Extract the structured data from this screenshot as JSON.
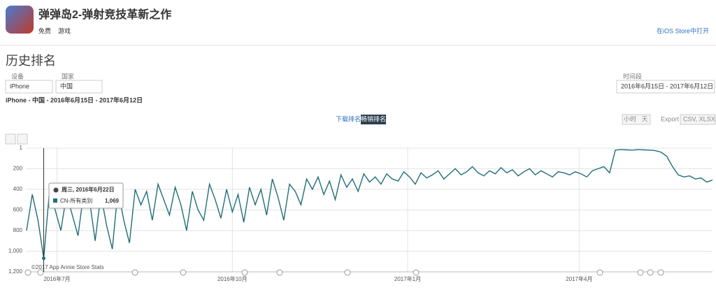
{
  "header": {
    "app_title": "弹弹岛2-弹射竞技革新之作",
    "price": "免费",
    "category": "游戏",
    "store_link": "在iOS Store中打开"
  },
  "section_title": "历史排名",
  "filters": {
    "device_label": "设备",
    "device": "iPhone",
    "country_label": "国家",
    "country": "中国",
    "date_label": "时间段",
    "date_range": "2016年6月15日 - 2017年6月12日"
  },
  "summary": "iPhone - 中国 - 2016年6月15日 - 2017年6月12日",
  "tabs": [
    "下载排名",
    "畅销排名"
  ],
  "controls": {
    "hour": "小时",
    "day": "天",
    "export": "Export",
    "formats": "CSV, XLSX"
  },
  "chart_data": {
    "type": "line",
    "reversed": true,
    "grid": true,
    "credit": "©2017 App Annie Store Stats",
    "series": [
      {
        "name": "CN-所有类别",
        "color": "#1f6f78",
        "values": [
          800,
          450,
          700,
          1069,
          420,
          600,
          800,
          450,
          650,
          850,
          430,
          500,
          900,
          450,
          750,
          980,
          400,
          700,
          920,
          400,
          550,
          420,
          700,
          350,
          500,
          650,
          380,
          550,
          800,
          420,
          600,
          700,
          350,
          500,
          680,
          400,
          620,
          450,
          720,
          380,
          550,
          400,
          650,
          300,
          480,
          700,
          350,
          420,
          550,
          300,
          400,
          280,
          450,
          320,
          500,
          260,
          380,
          300,
          420,
          250,
          330,
          280,
          350,
          250,
          300,
          320,
          230,
          280,
          350,
          240,
          290,
          260,
          220,
          300,
          250,
          200,
          260,
          230,
          180,
          240,
          270,
          220,
          250,
          190,
          240,
          210,
          270,
          230,
          200,
          260,
          220,
          250,
          280,
          230,
          240,
          260,
          230,
          250,
          280,
          220,
          200,
          180,
          240,
          20,
          15,
          18,
          20,
          15,
          18,
          20,
          25,
          40,
          80,
          180,
          260,
          280,
          270,
          300,
          290,
          330,
          310
        ]
      }
    ],
    "xlim": [
      0,
      120
    ],
    "xticks": [
      {
        "value": 5.33,
        "label": "2016年7月"
      },
      {
        "value": 36,
        "label": "2016年10月"
      },
      {
        "value": 66.67,
        "label": "2017年1月"
      },
      {
        "value": 96.67,
        "label": "2017年4月"
      }
    ],
    "ylim": [
      1,
      1200
    ],
    "yticks": [
      1,
      200,
      400,
      600,
      800,
      {
        "value": 1000,
        "label": "1,000"
      },
      {
        "value": 1200,
        "label": "1,200"
      }
    ],
    "tooltip": {
      "date": "周三, 2016年6月22日",
      "series": "CN-所有类别",
      "value": 1069,
      "value_label": "1,069"
    }
  }
}
